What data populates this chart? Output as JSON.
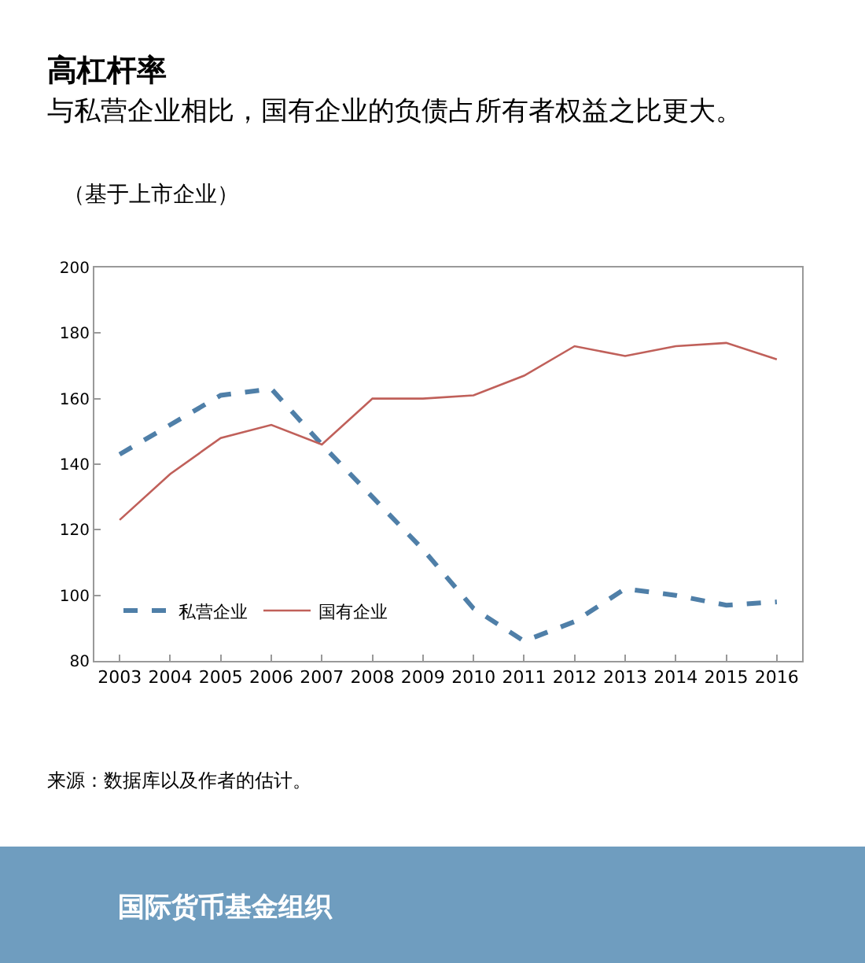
{
  "chart_data": {
    "type": "line",
    "title": "高杠杆率",
    "subtitle": "与私营企业相比，国有企业的负债占所有者权益之比更大。",
    "annotations": [
      "（基于上市企业）",
      "来源：数据库以及作者的估计。",
      "国际货币基金组织"
    ],
    "categories": [
      "2003",
      "2004",
      "2005",
      "2006",
      "2007",
      "2008",
      "2009",
      "2010",
      "2011",
      "2012",
      "2013",
      "2014",
      "2015",
      "2016"
    ],
    "series": [
      {
        "name": "私营企业",
        "color": "#4f7fa8",
        "line_style": "dashed",
        "values": [
          143,
          152,
          161,
          163,
          146,
          130,
          114,
          96,
          86,
          92,
          102,
          100,
          97,
          98
        ]
      },
      {
        "name": "国有企业",
        "color": "#c0605a",
        "line_style": "solid",
        "values": [
          123,
          137,
          148,
          152,
          146,
          160,
          160,
          161,
          167,
          176,
          173,
          176,
          177,
          172
        ]
      }
    ],
    "ylim": [
      80,
      200
    ],
    "yticks": [
      80,
      100,
      120,
      140,
      160,
      180,
      200
    ],
    "grid": false,
    "legend": "bottom left"
  }
}
